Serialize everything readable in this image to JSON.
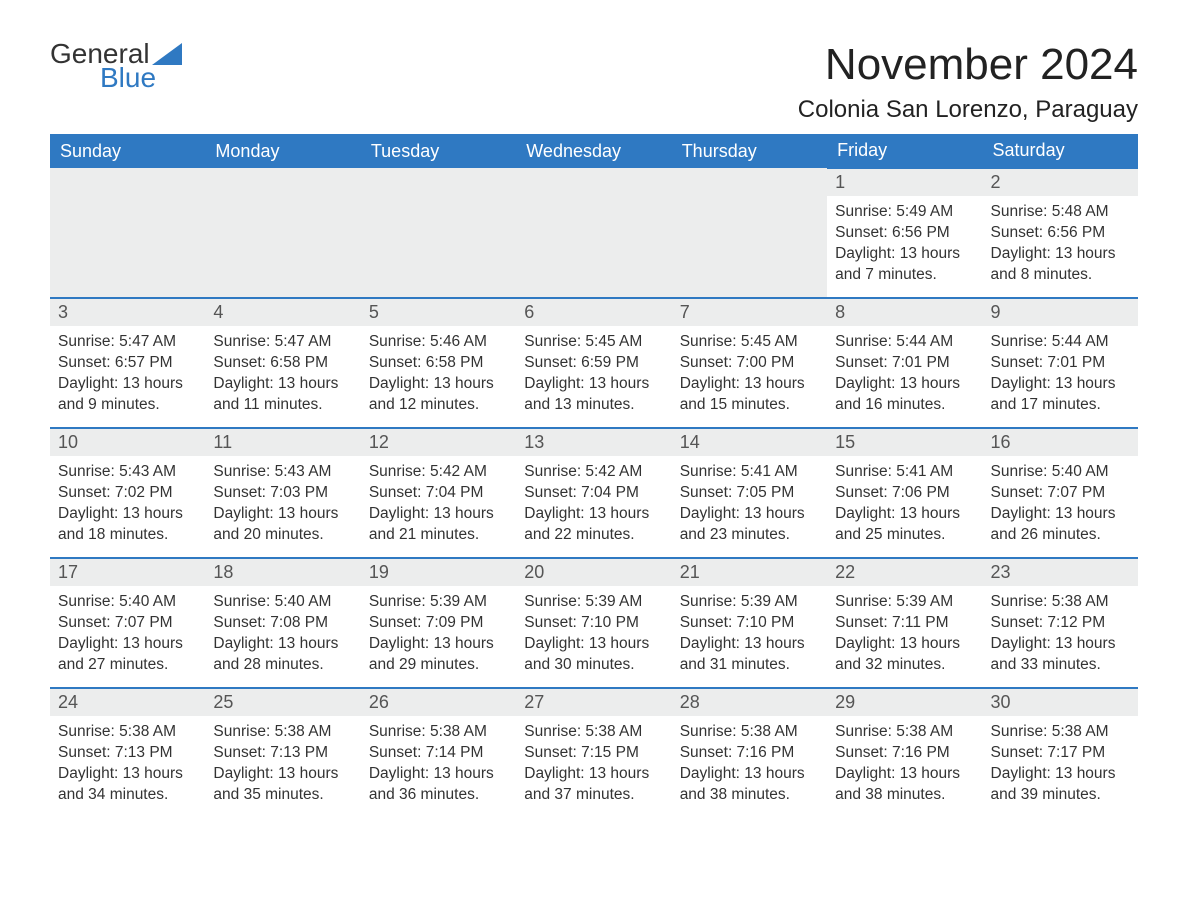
{
  "brand": {
    "word1": "General",
    "word2": "Blue",
    "accent": "#2f79c2"
  },
  "title": "November 2024",
  "location": "Colonia San Lorenzo, Paraguay",
  "style": {
    "header_bg": "#2f79c2",
    "header_fg": "#ffffff",
    "daynum_bg": "#eceded",
    "row_border": "#2f79c2",
    "page_bg": "#ffffff",
    "text_color": "#333333",
    "month_fontsize": 44,
    "location_fontsize": 24,
    "header_fontsize": 18,
    "body_fontsize": 15.5
  },
  "weekdays": [
    "Sunday",
    "Monday",
    "Tuesday",
    "Wednesday",
    "Thursday",
    "Friday",
    "Saturday"
  ],
  "leading_blanks": 5,
  "days": [
    {
      "n": 1,
      "sunrise": "5:49 AM",
      "sunset": "6:56 PM",
      "daylight": "13 hours and 7 minutes."
    },
    {
      "n": 2,
      "sunrise": "5:48 AM",
      "sunset": "6:56 PM",
      "daylight": "13 hours and 8 minutes."
    },
    {
      "n": 3,
      "sunrise": "5:47 AM",
      "sunset": "6:57 PM",
      "daylight": "13 hours and 9 minutes."
    },
    {
      "n": 4,
      "sunrise": "5:47 AM",
      "sunset": "6:58 PM",
      "daylight": "13 hours and 11 minutes."
    },
    {
      "n": 5,
      "sunrise": "5:46 AM",
      "sunset": "6:58 PM",
      "daylight": "13 hours and 12 minutes."
    },
    {
      "n": 6,
      "sunrise": "5:45 AM",
      "sunset": "6:59 PM",
      "daylight": "13 hours and 13 minutes."
    },
    {
      "n": 7,
      "sunrise": "5:45 AM",
      "sunset": "7:00 PM",
      "daylight": "13 hours and 15 minutes."
    },
    {
      "n": 8,
      "sunrise": "5:44 AM",
      "sunset": "7:01 PM",
      "daylight": "13 hours and 16 minutes."
    },
    {
      "n": 9,
      "sunrise": "5:44 AM",
      "sunset": "7:01 PM",
      "daylight": "13 hours and 17 minutes."
    },
    {
      "n": 10,
      "sunrise": "5:43 AM",
      "sunset": "7:02 PM",
      "daylight": "13 hours and 18 minutes."
    },
    {
      "n": 11,
      "sunrise": "5:43 AM",
      "sunset": "7:03 PM",
      "daylight": "13 hours and 20 minutes."
    },
    {
      "n": 12,
      "sunrise": "5:42 AM",
      "sunset": "7:04 PM",
      "daylight": "13 hours and 21 minutes."
    },
    {
      "n": 13,
      "sunrise": "5:42 AM",
      "sunset": "7:04 PM",
      "daylight": "13 hours and 22 minutes."
    },
    {
      "n": 14,
      "sunrise": "5:41 AM",
      "sunset": "7:05 PM",
      "daylight": "13 hours and 23 minutes."
    },
    {
      "n": 15,
      "sunrise": "5:41 AM",
      "sunset": "7:06 PM",
      "daylight": "13 hours and 25 minutes."
    },
    {
      "n": 16,
      "sunrise": "5:40 AM",
      "sunset": "7:07 PM",
      "daylight": "13 hours and 26 minutes."
    },
    {
      "n": 17,
      "sunrise": "5:40 AM",
      "sunset": "7:07 PM",
      "daylight": "13 hours and 27 minutes."
    },
    {
      "n": 18,
      "sunrise": "5:40 AM",
      "sunset": "7:08 PM",
      "daylight": "13 hours and 28 minutes."
    },
    {
      "n": 19,
      "sunrise": "5:39 AM",
      "sunset": "7:09 PM",
      "daylight": "13 hours and 29 minutes."
    },
    {
      "n": 20,
      "sunrise": "5:39 AM",
      "sunset": "7:10 PM",
      "daylight": "13 hours and 30 minutes."
    },
    {
      "n": 21,
      "sunrise": "5:39 AM",
      "sunset": "7:10 PM",
      "daylight": "13 hours and 31 minutes."
    },
    {
      "n": 22,
      "sunrise": "5:39 AM",
      "sunset": "7:11 PM",
      "daylight": "13 hours and 32 minutes."
    },
    {
      "n": 23,
      "sunrise": "5:38 AM",
      "sunset": "7:12 PM",
      "daylight": "13 hours and 33 minutes."
    },
    {
      "n": 24,
      "sunrise": "5:38 AM",
      "sunset": "7:13 PM",
      "daylight": "13 hours and 34 minutes."
    },
    {
      "n": 25,
      "sunrise": "5:38 AM",
      "sunset": "7:13 PM",
      "daylight": "13 hours and 35 minutes."
    },
    {
      "n": 26,
      "sunrise": "5:38 AM",
      "sunset": "7:14 PM",
      "daylight": "13 hours and 36 minutes."
    },
    {
      "n": 27,
      "sunrise": "5:38 AM",
      "sunset": "7:15 PM",
      "daylight": "13 hours and 37 minutes."
    },
    {
      "n": 28,
      "sunrise": "5:38 AM",
      "sunset": "7:16 PM",
      "daylight": "13 hours and 38 minutes."
    },
    {
      "n": 29,
      "sunrise": "5:38 AM",
      "sunset": "7:16 PM",
      "daylight": "13 hours and 38 minutes."
    },
    {
      "n": 30,
      "sunrise": "5:38 AM",
      "sunset": "7:17 PM",
      "daylight": "13 hours and 39 minutes."
    }
  ],
  "labels": {
    "sunrise": "Sunrise:",
    "sunset": "Sunset:",
    "daylight": "Daylight:"
  }
}
